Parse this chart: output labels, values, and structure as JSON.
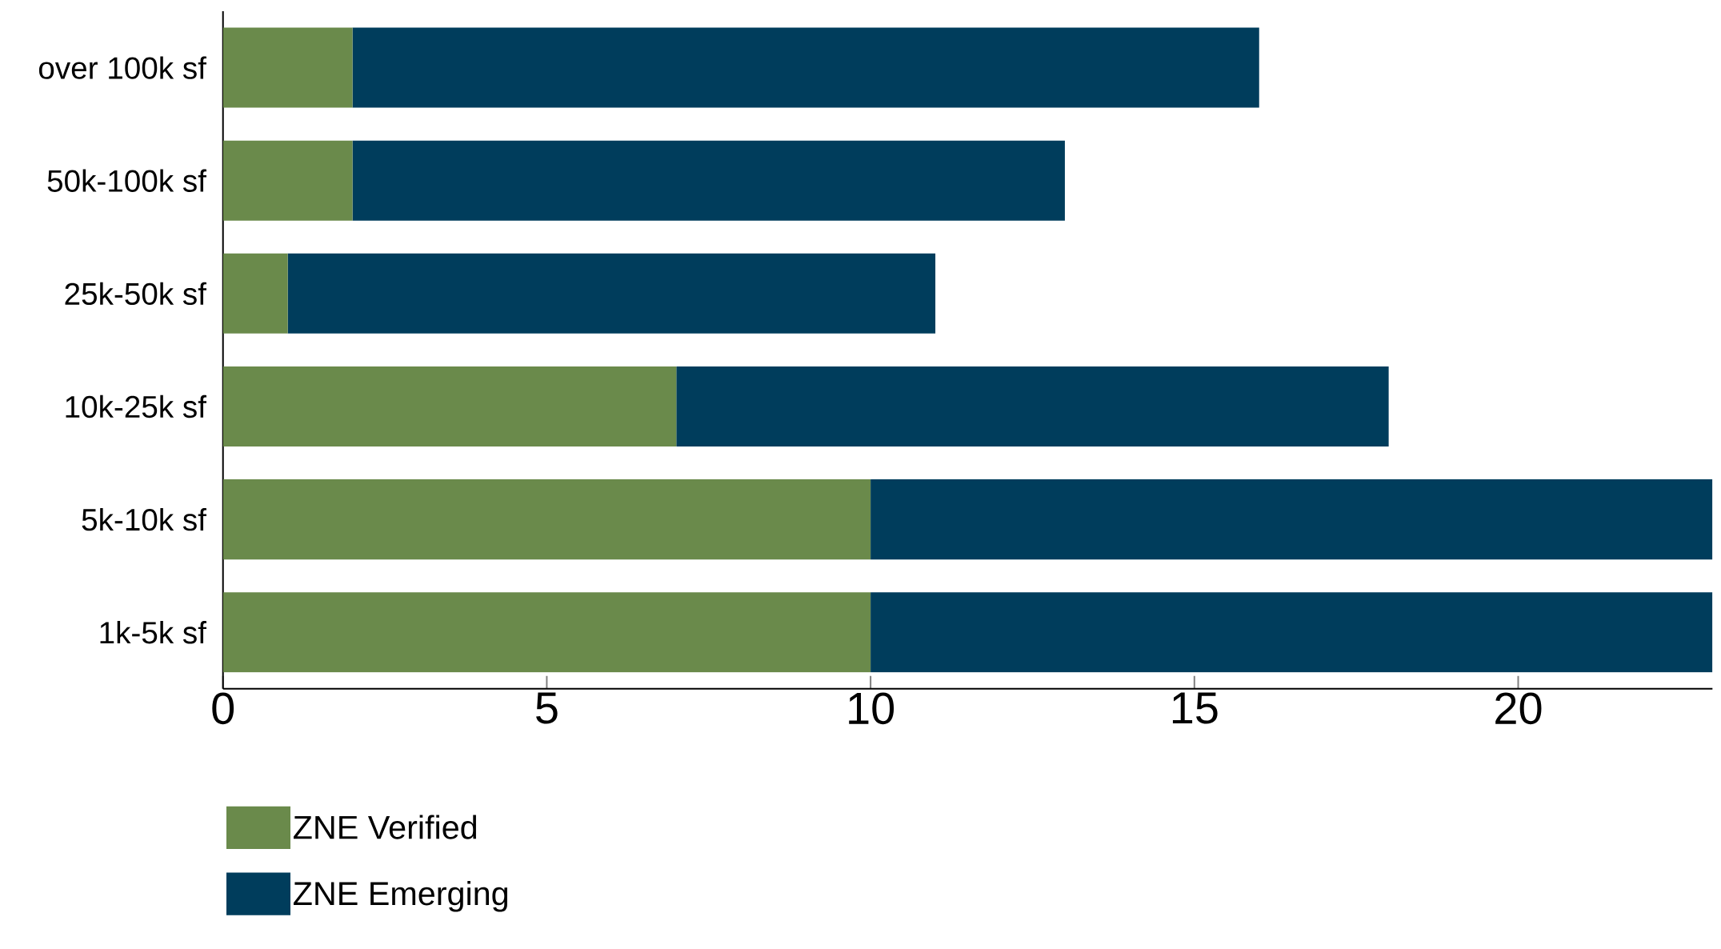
{
  "chart_data": {
    "type": "bar",
    "orientation": "horizontal",
    "stacked": true,
    "categories": [
      "over 100k sf",
      "50k-100k sf",
      "25k-50k sf",
      "10k-25k sf",
      "5k-10k sf",
      "1k-5k sf"
    ],
    "series": [
      {
        "name": "ZNE Verified",
        "color": "#6a8a4b",
        "values": [
          2,
          2,
          1,
          7,
          10,
          10
        ]
      },
      {
        "name": "ZNE Emerging",
        "color": "#003d5c",
        "values": [
          14,
          11,
          10,
          11,
          13,
          13
        ]
      }
    ],
    "xlim": [
      0,
      23
    ],
    "xticks": [
      0,
      5,
      10,
      15,
      20
    ],
    "legend": "bottom"
  }
}
